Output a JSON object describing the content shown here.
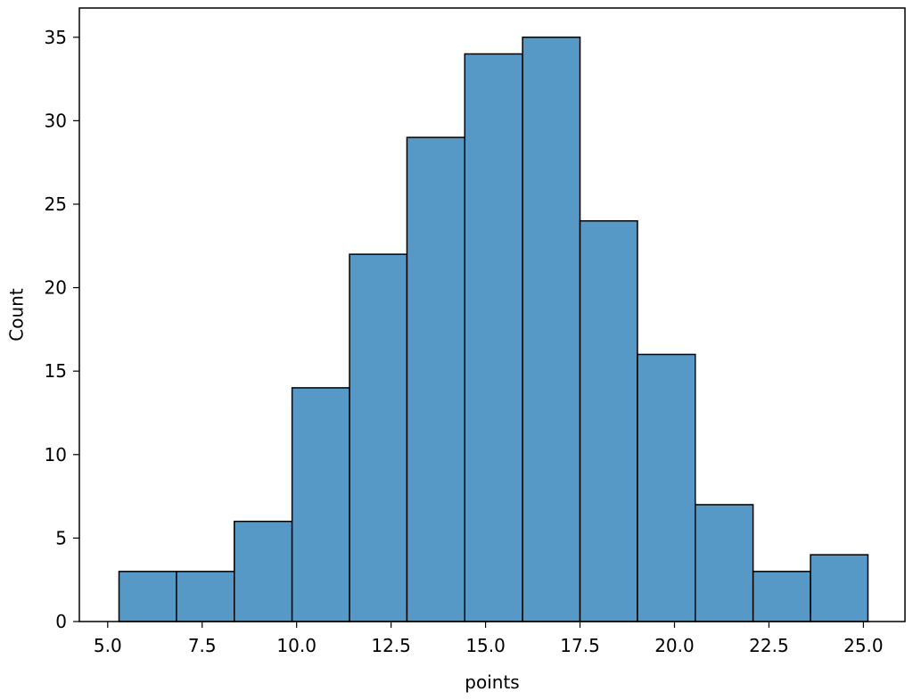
{
  "chart_data": {
    "type": "bar",
    "xlabel": "points",
    "ylabel": "Count",
    "xlim": [
      4.25,
      26.1
    ],
    "ylim": [
      0,
      36.75
    ],
    "bar_color": "#5698c6",
    "edge_color": "#000000",
    "bins": [
      {
        "start": 5.3,
        "end": 6.82,
        "count": 3
      },
      {
        "start": 6.82,
        "end": 8.35,
        "count": 3
      },
      {
        "start": 8.35,
        "end": 9.88,
        "count": 6
      },
      {
        "start": 9.88,
        "end": 11.4,
        "count": 14
      },
      {
        "start": 11.4,
        "end": 12.92,
        "count": 22
      },
      {
        "start": 12.92,
        "end": 14.45,
        "count": 29
      },
      {
        "start": 14.45,
        "end": 15.98,
        "count": 34
      },
      {
        "start": 15.98,
        "end": 17.5,
        "count": 35
      },
      {
        "start": 17.5,
        "end": 19.02,
        "count": 24
      },
      {
        "start": 19.02,
        "end": 20.55,
        "count": 16
      },
      {
        "start": 20.55,
        "end": 22.08,
        "count": 7
      },
      {
        "start": 22.08,
        "end": 23.6,
        "count": 3
      },
      {
        "start": 23.6,
        "end": 25.12,
        "count": 4
      }
    ],
    "x_ticks": [
      {
        "value": 5.0,
        "label": "5.0"
      },
      {
        "value": 7.5,
        "label": "7.5"
      },
      {
        "value": 10.0,
        "label": "10.0"
      },
      {
        "value": 12.5,
        "label": "12.5"
      },
      {
        "value": 15.0,
        "label": "15.0"
      },
      {
        "value": 17.5,
        "label": "17.5"
      },
      {
        "value": 20.0,
        "label": "20.0"
      },
      {
        "value": 22.5,
        "label": "22.5"
      },
      {
        "value": 25.0,
        "label": "25.0"
      }
    ],
    "y_ticks": [
      {
        "value": 0,
        "label": "0"
      },
      {
        "value": 5,
        "label": "5"
      },
      {
        "value": 10,
        "label": "10"
      },
      {
        "value": 15,
        "label": "15"
      },
      {
        "value": 20,
        "label": "20"
      },
      {
        "value": 25,
        "label": "25"
      },
      {
        "value": 30,
        "label": "30"
      },
      {
        "value": 35,
        "label": "35"
      }
    ],
    "grid": false,
    "legend": "none"
  }
}
